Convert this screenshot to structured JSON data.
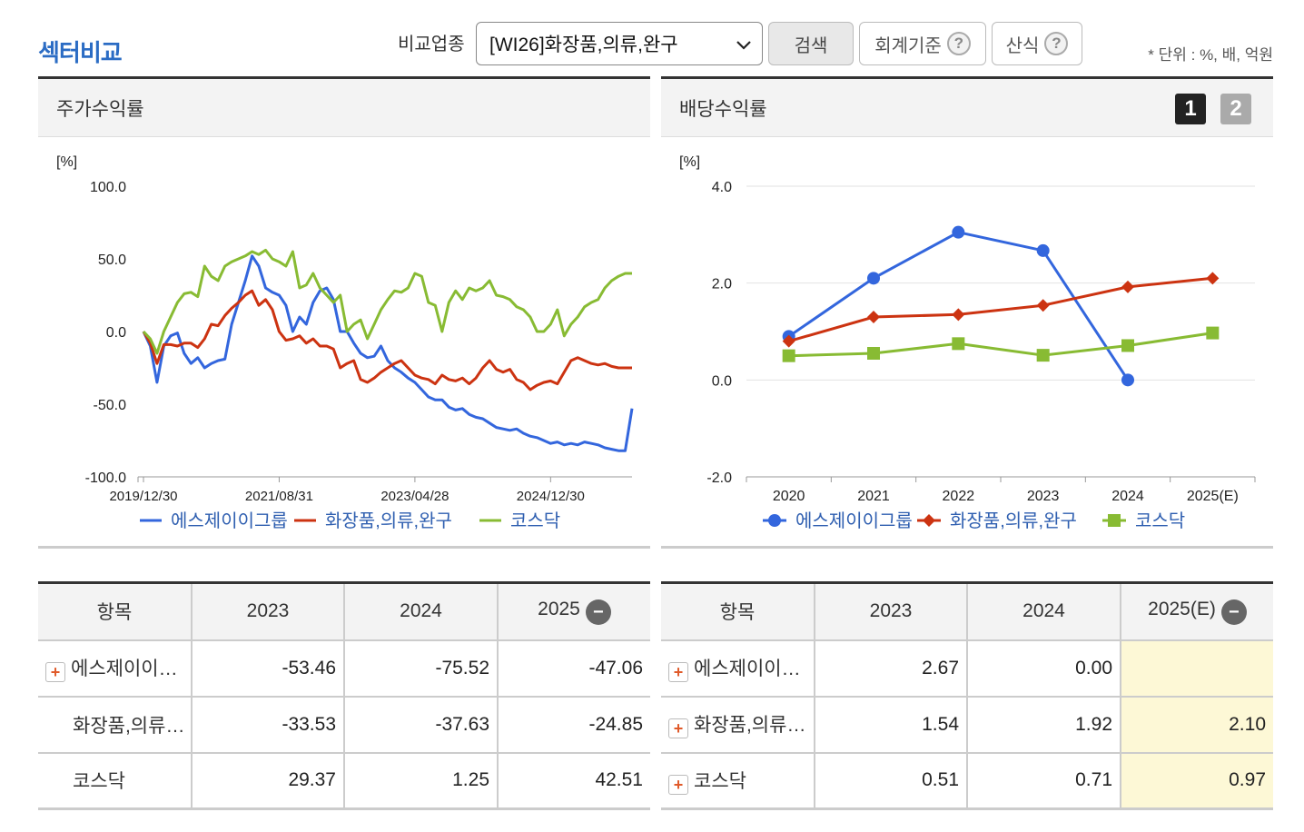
{
  "header": {
    "title": "섹터비교",
    "compare_label": "비교업종",
    "sector_selected": "[WI26]화장품,의류,완구",
    "search_label": "검색",
    "accounting_label": "회계기준",
    "formula_label": "산식",
    "help_glyph": "?",
    "unit_text": "* 단위 : %, 배, 억원"
  },
  "left_panel": {
    "title": "주가수익률"
  },
  "right_panel": {
    "title": "배당수익률",
    "page1": "1",
    "page2": "2"
  },
  "colors": {
    "company": "#3366dd",
    "sector": "#cc3311",
    "kosdaq": "#88bb33"
  },
  "chart_data": [
    {
      "type": "line",
      "title": "주가수익률",
      "ylabel": "[%]",
      "ylim": [
        -100,
        100
      ],
      "yticks": [
        "100.0",
        "50.0",
        "0.0",
        "-50.0",
        "-100.0"
      ],
      "xtick_labels": [
        "2019/12/30",
        "2021/08/31",
        "2023/04/28",
        "2024/12/30"
      ],
      "xtick_index": [
        0,
        20,
        40,
        60
      ],
      "n_points": 73,
      "series": [
        {
          "name": "에스제이이그룹",
          "color": "#3366dd",
          "values": [
            0,
            -10,
            -35,
            -10,
            -3,
            -1,
            -15,
            -22,
            -18,
            -25,
            -22,
            -20,
            -19,
            5,
            20,
            35,
            52,
            45,
            30,
            27,
            25,
            18,
            0,
            10,
            5,
            20,
            28,
            30,
            22,
            0,
            0,
            -8,
            -15,
            -18,
            -17,
            -10,
            -20,
            -25,
            -28,
            -32,
            -35,
            -40,
            -45,
            -47,
            -47,
            -52,
            -54,
            -53,
            -57,
            -59,
            -60,
            -63,
            -66,
            -67,
            -68,
            -67,
            -70,
            -72,
            -73,
            -75,
            -77,
            -76,
            -78,
            -77,
            -78,
            -76,
            -77,
            -78,
            -80,
            -81,
            -82,
            -82,
            -53
          ]
        },
        {
          "name": "화장품,의류,완구",
          "color": "#cc3311",
          "values": [
            0,
            -8,
            -22,
            -9,
            -9,
            -10,
            -8,
            -8,
            -11,
            -5,
            5,
            4,
            11,
            16,
            20,
            25,
            28,
            18,
            22,
            15,
            0,
            -6,
            -5,
            -3,
            -8,
            -5,
            -10,
            -10,
            -12,
            -25,
            -22,
            -20,
            -33,
            -35,
            -32,
            -28,
            -25,
            -22,
            -20,
            -25,
            -30,
            -32,
            -33,
            -36,
            -30,
            -33,
            -34,
            -32,
            -36,
            -32,
            -25,
            -20,
            -26,
            -28,
            -26,
            -33,
            -35,
            -40,
            -37,
            -35,
            -34,
            -36,
            -28,
            -20,
            -18,
            -20,
            -22,
            -23,
            -22,
            -24,
            -25,
            -25,
            -25
          ]
        },
        {
          "name": "코스닥",
          "color": "#88bb33",
          "values": [
            0,
            -5,
            -15,
            0,
            10,
            20,
            26,
            27,
            24,
            45,
            38,
            35,
            45,
            48,
            50,
            52,
            55,
            53,
            56,
            50,
            48,
            45,
            55,
            30,
            32,
            40,
            30,
            25,
            20,
            25,
            0,
            5,
            8,
            -5,
            5,
            15,
            22,
            28,
            27,
            30,
            40,
            38,
            20,
            18,
            0,
            20,
            28,
            22,
            30,
            28,
            30,
            35,
            25,
            24,
            22,
            17,
            15,
            10,
            0,
            0,
            5,
            15,
            -3,
            5,
            10,
            17,
            20,
            22,
            30,
            35,
            38,
            40,
            40
          ]
        }
      ]
    },
    {
      "type": "line",
      "title": "배당수익률",
      "ylabel": "[%]",
      "ylim": [
        -2,
        4
      ],
      "yticks": [
        "4.0",
        "2.0",
        "0.0",
        "-2.0"
      ],
      "categories": [
        "2020",
        "2021",
        "2022",
        "2023",
        "2024",
        "2025(E)"
      ],
      "series": [
        {
          "name": "에스제이이그룹",
          "color": "#3366dd",
          "marker": "circle",
          "values": [
            0.9,
            2.1,
            3.05,
            2.67,
            0.0,
            null
          ]
        },
        {
          "name": "화장품,의류,완구",
          "color": "#cc3311",
          "marker": "diamond",
          "values": [
            0.8,
            1.3,
            1.35,
            1.54,
            1.92,
            2.1
          ]
        },
        {
          "name": "코스닥",
          "color": "#88bb33",
          "marker": "square",
          "values": [
            0.5,
            0.55,
            0.75,
            0.51,
            0.71,
            0.97
          ]
        }
      ]
    }
  ],
  "left_table": {
    "headers": [
      "항목",
      "2023",
      "2024",
      "2025"
    ],
    "rows": [
      {
        "name": "에스제이이그룹",
        "v1": "-53.46",
        "v2": "-75.52",
        "v3": "-47.06"
      },
      {
        "name": "화장품,의류,완구",
        "v1": "-33.53",
        "v2": "-37.63",
        "v3": "-24.85"
      },
      {
        "name": "코스닥",
        "v1": "29.37",
        "v2": "1.25",
        "v3": "42.51"
      }
    ]
  },
  "right_table": {
    "headers": [
      "항목",
      "2023",
      "2024",
      "2025(E)"
    ],
    "rows": [
      {
        "name": "에스제이이그룹",
        "v1": "2.67",
        "v2": "0.00",
        "v3": ""
      },
      {
        "name": "화장품,의류,완구",
        "v1": "1.54",
        "v2": "1.92",
        "v3": "2.10"
      },
      {
        "name": "코스닥",
        "v1": "0.51",
        "v2": "0.71",
        "v3": "0.97"
      }
    ]
  }
}
